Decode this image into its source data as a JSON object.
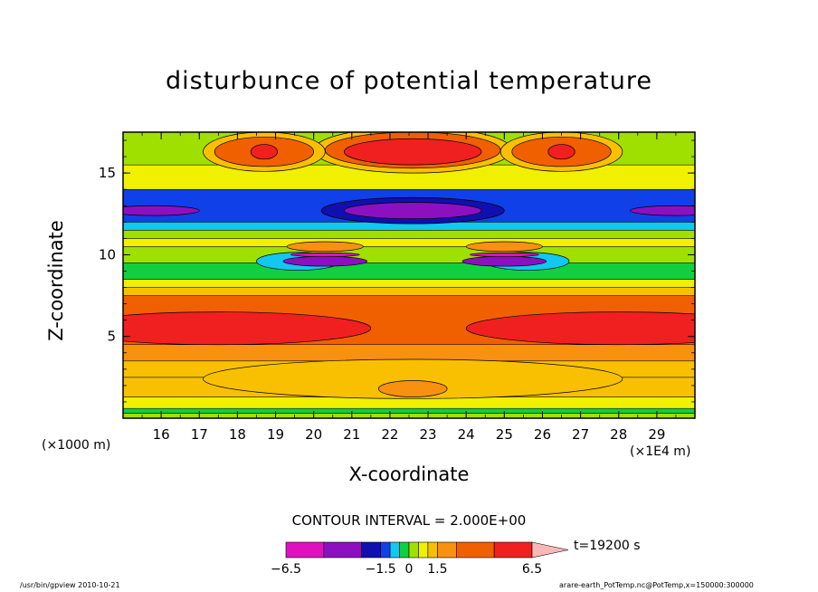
{
  "chart_data": {
    "type": "heatmap",
    "title": "disturbunce of potential temperature",
    "xlabel": "X-coordinate",
    "ylabel": "Z-coordinate",
    "x_unit_label": "(×1E4 m)",
    "y_unit_label": "(×1000 m)",
    "xlim": [
      15.0,
      30.0
    ],
    "ylim": [
      0.0,
      17.5
    ],
    "x_ticks": [
      16,
      17,
      18,
      19,
      20,
      21,
      22,
      23,
      24,
      25,
      26,
      27,
      28,
      29
    ],
    "y_ticks": [
      5,
      10,
      15
    ],
    "contour_interval_text": "CONTOUR INTERVAL = 2.000E+00",
    "time_text": "t=19200 s",
    "colorbar": {
      "tick_labels": [
        "−6.5",
        "−1.5",
        "0",
        "1.5",
        "6.5"
      ],
      "tick_values": [
        -6.5,
        -1.5,
        0,
        1.5,
        6.5
      ],
      "levels": [
        -6.5,
        -4.5,
        -2.5,
        -1.5,
        -1.0,
        -0.5,
        0,
        0.5,
        1.0,
        1.5,
        2.5,
        4.5,
        6.5
      ],
      "colors": [
        "#e010c0",
        "#8c10c0",
        "#1010b0",
        "#1040e8",
        "#10c8f0",
        "#10d040",
        "#a0e000",
        "#f0f000",
        "#f8c000",
        "#f89010",
        "#f06000",
        "#f02020",
        "#f87878"
      ],
      "extend_color": "#f8b8b8"
    },
    "bands": [
      {
        "z": [
          0.0,
          0.3
        ],
        "value": 0.2
      },
      {
        "z": [
          0.3,
          0.6
        ],
        "value": -0.3
      },
      {
        "z": [
          0.6,
          1.3
        ],
        "value": 0.8
      },
      {
        "z": [
          1.3,
          2.5
        ],
        "value": 1.2
      },
      {
        "z": [
          2.5,
          3.5
        ],
        "value": 1.3
      },
      {
        "z": [
          3.5,
          4.5
        ],
        "value": 2.0
      },
      {
        "z": [
          4.5,
          7.5
        ],
        "value": 3.0
      },
      {
        "z": [
          7.5,
          8.0
        ],
        "value": 1.2
      },
      {
        "z": [
          8.0,
          8.5
        ],
        "value": 0.6
      },
      {
        "z": [
          8.5,
          9.5
        ],
        "value": -0.2
      },
      {
        "z": [
          9.5,
          10.5
        ],
        "value": 0.2
      },
      {
        "z": [
          10.5,
          11.0
        ],
        "value": 0.6
      },
      {
        "z": [
          11.0,
          11.5
        ],
        "value": 0.2
      },
      {
        "z": [
          11.5,
          12.0
        ],
        "value": -0.7
      },
      {
        "z": [
          12.0,
          14.0
        ],
        "value": -1.2
      },
      {
        "z": [
          14.0,
          15.5
        ],
        "value": 0.8
      },
      {
        "z": [
          15.5,
          17.5
        ],
        "value": 0.4
      }
    ],
    "blobs": [
      {
        "x": 17.5,
        "z": 5.5,
        "rx": 4.0,
        "rz": 1.0,
        "value": 5.5
      },
      {
        "x": 28.0,
        "z": 5.5,
        "rx": 4.0,
        "rz": 1.0,
        "value": 5.5
      },
      {
        "x": 22.6,
        "z": 16.4,
        "rx": 2.6,
        "rz": 1.4,
        "value": 1.3
      },
      {
        "x": 22.6,
        "z": 16.4,
        "rx": 2.3,
        "rz": 1.1,
        "value": 3.0
      },
      {
        "x": 22.6,
        "z": 16.3,
        "rx": 1.8,
        "rz": 0.8,
        "value": 5.0
      },
      {
        "x": 18.7,
        "z": 16.3,
        "rx": 1.6,
        "rz": 1.2,
        "value": 1.3
      },
      {
        "x": 18.7,
        "z": 16.3,
        "rx": 1.3,
        "rz": 0.9,
        "value": 3.0
      },
      {
        "x": 18.7,
        "z": 16.3,
        "rx": 0.35,
        "rz": 0.45,
        "value": 5.0
      },
      {
        "x": 26.5,
        "z": 16.3,
        "rx": 1.6,
        "rz": 1.2,
        "value": 1.3
      },
      {
        "x": 26.5,
        "z": 16.3,
        "rx": 1.3,
        "rz": 0.9,
        "value": 3.0
      },
      {
        "x": 26.5,
        "z": 16.3,
        "rx": 0.35,
        "rz": 0.45,
        "value": 5.0
      },
      {
        "x": 22.6,
        "z": 12.7,
        "rx": 2.4,
        "rz": 0.8,
        "value": -1.8
      },
      {
        "x": 22.6,
        "z": 12.7,
        "rx": 1.8,
        "rz": 0.5,
        "value": -3.5
      },
      {
        "x": 15.8,
        "z": 12.7,
        "rx": 1.2,
        "rz": 0.3,
        "value": -3.5
      },
      {
        "x": 29.5,
        "z": 12.7,
        "rx": 1.2,
        "rz": 0.3,
        "value": -3.5
      },
      {
        "x": 19.6,
        "z": 9.6,
        "rx": 1.1,
        "rz": 0.55,
        "value": -0.8
      },
      {
        "x": 25.6,
        "z": 9.6,
        "rx": 1.1,
        "rz": 0.55,
        "value": -0.8
      },
      {
        "x": 20.3,
        "z": 9.6,
        "rx": 1.1,
        "rz": 0.3,
        "value": -3.5
      },
      {
        "x": 25.0,
        "z": 9.6,
        "rx": 1.1,
        "rz": 0.3,
        "value": -3.5
      },
      {
        "x": 20.3,
        "z": 10.5,
        "rx": 1.0,
        "rz": 0.3,
        "value": 2.0
      },
      {
        "x": 25.0,
        "z": 10.5,
        "rx": 1.0,
        "rz": 0.3,
        "value": 2.0
      },
      {
        "x": 20.3,
        "z": 10.0,
        "rx": 0.9,
        "rz": 0.12,
        "value": -7.0
      },
      {
        "x": 25.0,
        "z": 10.0,
        "rx": 0.9,
        "rz": 0.12,
        "value": -7.0
      },
      {
        "x": 22.6,
        "z": 2.4,
        "rx": 5.5,
        "rz": 1.2,
        "value": 1.2
      },
      {
        "x": 22.6,
        "z": 1.8,
        "rx": 0.9,
        "rz": 0.5,
        "value": 1.7
      }
    ]
  },
  "footer": {
    "left": "/usr/bin/gpview  2010-10-21",
    "right": "arare-earth_PotTemp.nc@PotTemp,x=150000:300000"
  }
}
